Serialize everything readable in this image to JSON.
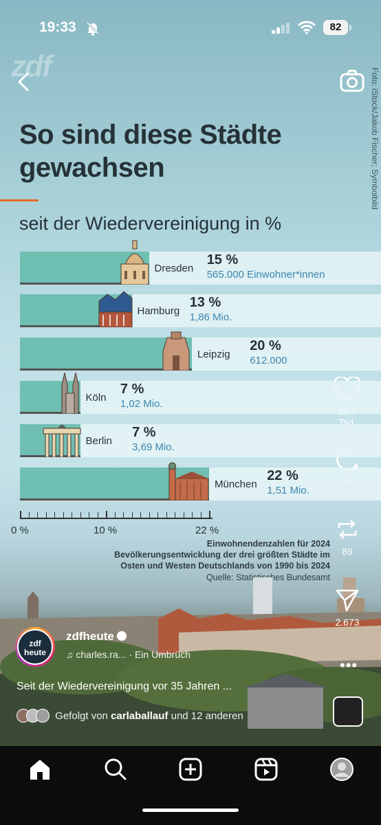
{
  "status_bar": {
    "time": "19:33",
    "battery": "82"
  },
  "header": {
    "watermark": "zdf",
    "photo_credit": "Foto: iStock/Jakob Fischer; Symbolbild"
  },
  "infographic": {
    "title": "So sind diese Städte gewachsen",
    "subtitle": "seit der Wiedervereinigung in %",
    "notes": [
      "Einwohnendenzahlen für 2024",
      "Bevölkerungsentwicklung der drei größten Städte im",
      "Osten und Westen Deutschlands von 1990 bis 2024",
      "Quelle: Statistisches Bundesamt"
    ]
  },
  "chart_data": {
    "type": "bar",
    "orientation": "horizontal",
    "title": "So sind diese Städte gewachsen",
    "subtitle": "seit der Wiedervereinigung in %",
    "categories": [
      "Dresden",
      "Hamburg",
      "Leipzig",
      "Köln",
      "Berlin",
      "München"
    ],
    "values": [
      15,
      13,
      20,
      7,
      7,
      22
    ],
    "value_labels": [
      "15 %",
      "13 %",
      "20 %",
      "7 %",
      "7 %",
      "22 %"
    ],
    "population_labels": [
      "565.000 Einwohner*innen",
      "1,86 Mio.",
      "612.000",
      "1,02 Mio.",
      "3,69 Mio.",
      "1,51 Mio."
    ],
    "xlim": [
      0,
      22
    ],
    "x_ticks": [
      "0 %",
      "10 %",
      "22 %"
    ],
    "bar_color": "#6fbfb2"
  },
  "actions": {
    "likes": "19,7 Tsd.",
    "comments": "356",
    "reposts": "89",
    "shares": "2.673"
  },
  "post": {
    "account": "zdfheute",
    "avatar_line1": "zdf",
    "avatar_line2": "heute",
    "audio": "charles.ra...  ·  Ein Umbrüch",
    "caption": "Seit der Wiedervereinigung vor 35 Jahren ...",
    "followed_prefix": "Gefolgt von",
    "followed_user": "carlaballauf",
    "followed_suffix": "und 12 anderen"
  }
}
